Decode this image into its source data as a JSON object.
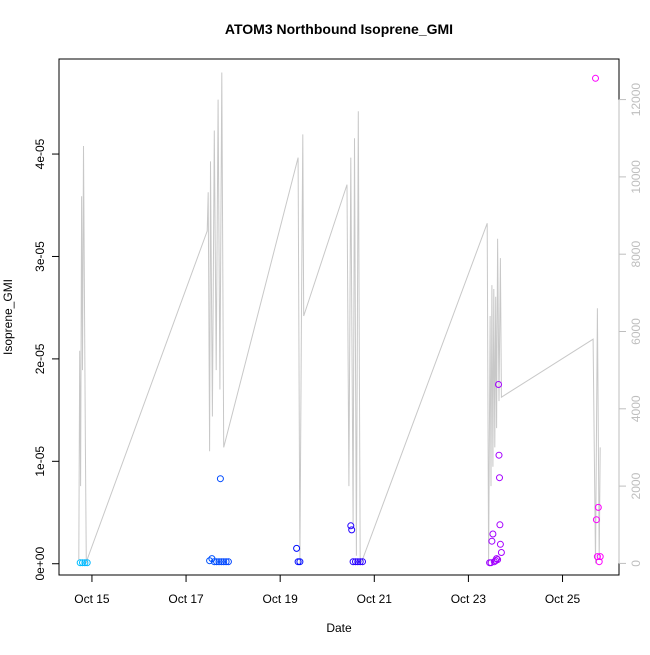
{
  "chart_data": {
    "type": "scatter",
    "title": "ATOM3 Northbound Isoprene_GMI",
    "xlabel": "Date",
    "ylabel": "Isoprene_GMI",
    "x_ticks": [
      "Oct 15",
      "Oct 17",
      "Oct 19",
      "Oct 21",
      "Oct 23",
      "Oct 25"
    ],
    "x_tick_days": [
      15,
      17,
      19,
      21,
      23,
      25
    ],
    "xlim_days": [
      14.3,
      26.2
    ],
    "y_ticks": [
      "0e+00",
      "1e-05",
      "2e-05",
      "3e-05",
      "4e-05"
    ],
    "y_tick_values": [
      0,
      1e-05,
      2e-05,
      3e-05,
      4e-05
    ],
    "ylim": [
      -1.1e-06,
      4.928e-05
    ],
    "y2_ticks": [
      "0",
      "2000",
      "4000",
      "6000",
      "8000",
      "10000",
      "12000"
    ],
    "y2_tick_values": [
      0,
      2000,
      4000,
      6000,
      8000,
      10000,
      12000
    ],
    "y2lim": [
      -300,
      13050
    ],
    "grid": false,
    "legend": "none",
    "colors": {
      "points_start": "#00bfff",
      "points_mid": "#0000ff",
      "points_end": "#ff00ff",
      "altitude_line": "#c8c8c8",
      "axis": "#000000",
      "y2_axis": "#bebebe"
    },
    "points": [
      {
        "x": 14.75,
        "y": 1e-07
      },
      {
        "x": 14.8,
        "y": 1e-07
      },
      {
        "x": 14.85,
        "y": 1e-07
      },
      {
        "x": 14.9,
        "y": 1e-07
      },
      {
        "x": 17.5,
        "y": 3e-07
      },
      {
        "x": 17.55,
        "y": 5e-07
      },
      {
        "x": 17.6,
        "y": 2e-07
      },
      {
        "x": 17.65,
        "y": 2e-07
      },
      {
        "x": 17.7,
        "y": 2e-07
      },
      {
        "x": 17.73,
        "y": 8.3e-06
      },
      {
        "x": 17.75,
        "y": 2e-07
      },
      {
        "x": 17.8,
        "y": 2e-07
      },
      {
        "x": 17.85,
        "y": 2e-07
      },
      {
        "x": 17.9,
        "y": 2e-07
      },
      {
        "x": 19.35,
        "y": 1.5e-06
      },
      {
        "x": 19.38,
        "y": 2e-07
      },
      {
        "x": 19.42,
        "y": 2e-07
      },
      {
        "x": 20.5,
        "y": 3.7e-06
      },
      {
        "x": 20.52,
        "y": 3.3e-06
      },
      {
        "x": 20.55,
        "y": 2e-07
      },
      {
        "x": 20.6,
        "y": 2e-07
      },
      {
        "x": 20.65,
        "y": 2e-07
      },
      {
        "x": 20.7,
        "y": 2e-07
      },
      {
        "x": 20.75,
        "y": 2e-07
      },
      {
        "x": 23.45,
        "y": 1e-07
      },
      {
        "x": 23.48,
        "y": 1e-07
      },
      {
        "x": 23.5,
        "y": 2.2e-06
      },
      {
        "x": 23.52,
        "y": 2.9e-06
      },
      {
        "x": 23.55,
        "y": 2e-07
      },
      {
        "x": 23.58,
        "y": 3e-07
      },
      {
        "x": 23.6,
        "y": 5e-07
      },
      {
        "x": 23.62,
        "y": 4e-07
      },
      {
        "x": 23.64,
        "y": 1.75e-05
      },
      {
        "x": 23.65,
        "y": 1.06e-05
      },
      {
        "x": 23.66,
        "y": 8.4e-06
      },
      {
        "x": 23.67,
        "y": 3.8e-06
      },
      {
        "x": 23.68,
        "y": 1.9e-06
      },
      {
        "x": 23.7,
        "y": 1.1e-06
      },
      {
        "x": 25.7,
        "y": 4.74e-05
      },
      {
        "x": 25.72,
        "y": 4.3e-06
      },
      {
        "x": 25.74,
        "y": 7e-07
      },
      {
        "x": 25.76,
        "y": 5.5e-06
      },
      {
        "x": 25.78,
        "y": 2e-07
      },
      {
        "x": 25.8,
        "y": 7e-07
      }
    ],
    "altitude_path": [
      [
        14.72,
        100
      ],
      [
        14.74,
        5500
      ],
      [
        14.76,
        2000
      ],
      [
        14.78,
        9500
      ],
      [
        14.8,
        5000
      ],
      [
        14.82,
        10800
      ],
      [
        14.86,
        3000
      ],
      [
        14.88,
        0
      ],
      [
        14.9,
        100
      ],
      [
        17.45,
        8600
      ],
      [
        17.47,
        9600
      ],
      [
        17.5,
        2900
      ],
      [
        17.52,
        10400
      ],
      [
        17.56,
        3800
      ],
      [
        17.6,
        11200
      ],
      [
        17.64,
        5000
      ],
      [
        17.68,
        12000
      ],
      [
        17.72,
        4500
      ],
      [
        17.76,
        12700
      ],
      [
        17.8,
        3000
      ],
      [
        19.38,
        10500
      ],
      [
        19.42,
        0
      ],
      [
        19.45,
        6200
      ],
      [
        19.48,
        11100
      ],
      [
        19.5,
        6400
      ],
      [
        20.42,
        9800
      ],
      [
        20.46,
        2000
      ],
      [
        20.5,
        10500
      ],
      [
        20.55,
        1000
      ],
      [
        20.58,
        11000
      ],
      [
        20.62,
        200
      ],
      [
        20.66,
        11700
      ],
      [
        20.7,
        0
      ],
      [
        20.75,
        100
      ],
      [
        23.4,
        8800
      ],
      [
        23.43,
        0
      ],
      [
        23.46,
        6400
      ],
      [
        23.48,
        2000
      ],
      [
        23.5,
        7200
      ],
      [
        23.52,
        2500
      ],
      [
        23.54,
        7100
      ],
      [
        23.56,
        3000
      ],
      [
        23.58,
        6900
      ],
      [
        23.6,
        3500
      ],
      [
        23.62,
        8400
      ],
      [
        23.65,
        4200
      ],
      [
        23.68,
        7900
      ],
      [
        23.7,
        4300
      ],
      [
        25.65,
        5800
      ],
      [
        25.7,
        0
      ],
      [
        25.74,
        6600
      ],
      [
        25.78,
        100
      ],
      [
        25.8,
        3000
      ]
    ]
  }
}
